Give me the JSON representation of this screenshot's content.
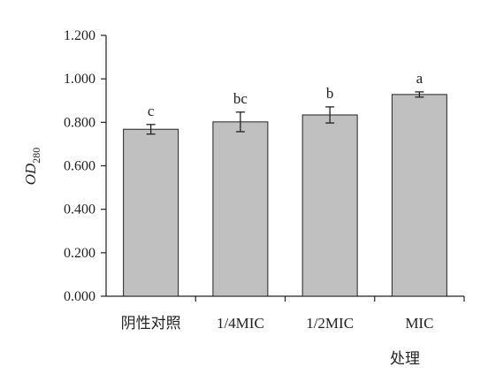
{
  "chart_data": {
    "type": "bar",
    "categories": [
      "阴性对照",
      "1/4MIC",
      "1/2MIC",
      "MIC"
    ],
    "values": [
      0.768,
      0.802,
      0.834,
      0.928
    ],
    "errors": [
      0.022,
      0.045,
      0.037,
      0.012
    ],
    "significance": [
      "c",
      "bc",
      "b",
      "a"
    ],
    "title": "",
    "xlabel": "处理",
    "ylabel": {
      "main": "OD",
      "subscript": "280"
    },
    "ylim": [
      0,
      1.2
    ],
    "yticks": [
      "0.000",
      "0.200",
      "0.400",
      "0.600",
      "0.800",
      "1.000",
      "1.200"
    ],
    "bar_color": "#c0c0c0",
    "grid": false
  }
}
